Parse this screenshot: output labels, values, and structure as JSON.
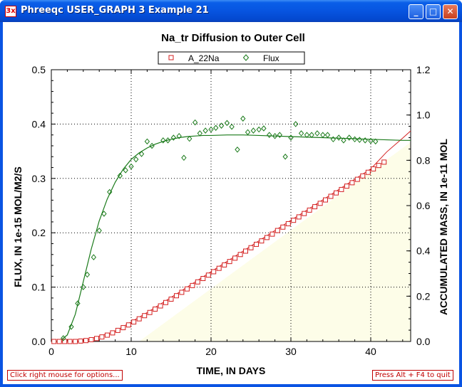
{
  "window": {
    "title": "Phreeqc USER_GRAPH 3 Example 21",
    "app_icon_text": "3x",
    "minimize_symbol": "_",
    "maximize_symbol": "□",
    "close_symbol": "✕"
  },
  "status": {
    "left_hint": "Click right mouse for options...",
    "right_hint": "Press Alt + F4 to quit"
  },
  "colors": {
    "series_a22na": "#d42020",
    "series_flux": "#1a7a1a",
    "fill": "#fdfde8",
    "window_frame": "#0a54e3"
  },
  "chart_data": {
    "type": "scatter",
    "title": "Na_tr Diffusion to Outer Cell",
    "xlabel": "TIME, IN DAYS",
    "ylabel": "FLUX, IN 1e-15 MOL/M2/S",
    "y2label": "ACCUMULATED MASS, IN 1e-11 MOL",
    "xlim": [
      0,
      45
    ],
    "ylim": [
      0,
      0.5
    ],
    "y2lim": [
      0,
      1.2
    ],
    "x_ticks": [
      "0",
      "10",
      "20",
      "30",
      "40"
    ],
    "y_ticks": [
      "0.0",
      "0.1",
      "0.2",
      "0.3",
      "0.4",
      "0.5"
    ],
    "y2_ticks": [
      "0.0",
      "0.2",
      "0.4",
      "0.6",
      "0.8",
      "1.0",
      "1.2"
    ],
    "grid": true,
    "legend_position": "top-center",
    "series": [
      {
        "name": "A_22Na",
        "axis": "y2",
        "marker": "square",
        "x": [
          0.33,
          1.0,
          1.67,
          2.33,
          3.0,
          3.67,
          4.33,
          5.0,
          5.67,
          6.33,
          7.0,
          7.67,
          8.33,
          9.0,
          9.67,
          10.33,
          11.0,
          11.67,
          12.33,
          13.0,
          13.67,
          14.33,
          15.0,
          15.67,
          16.33,
          17.0,
          17.67,
          18.33,
          19.0,
          19.67,
          20.33,
          21.0,
          21.67,
          22.33,
          23.0,
          23.67,
          24.33,
          25.0,
          25.67,
          26.33,
          27.0,
          27.67,
          28.33,
          29.0,
          29.67,
          30.33,
          31.0,
          31.67,
          32.33,
          33.0,
          33.67,
          34.33,
          35.0,
          35.67,
          36.33,
          37.0,
          37.67,
          38.33,
          39.0,
          39.67,
          40.33,
          41.0,
          41.67
        ],
        "y": [
          0.0,
          0.0,
          0.0,
          0.0,
          0.0,
          0.002,
          0.004,
          0.008,
          0.013,
          0.02,
          0.028,
          0.038,
          0.049,
          0.061,
          0.073,
          0.086,
          0.1,
          0.114,
          0.128,
          0.143,
          0.157,
          0.172,
          0.187,
          0.202,
          0.217,
          0.232,
          0.247,
          0.263,
          0.278,
          0.293,
          0.308,
          0.323,
          0.338,
          0.353,
          0.368,
          0.384,
          0.399,
          0.414,
          0.429,
          0.444,
          0.459,
          0.474,
          0.49,
          0.505,
          0.52,
          0.535,
          0.55,
          0.565,
          0.58,
          0.595,
          0.61,
          0.625,
          0.641,
          0.656,
          0.671,
          0.686,
          0.701,
          0.716,
          0.731,
          0.747,
          0.762,
          0.777,
          0.792
        ]
      },
      {
        "name": "Flux",
        "axis": "y1",
        "marker": "diamond",
        "x": [
          1.5,
          2.5,
          3.3,
          4.0,
          4.5,
          5.3,
          6.0,
          6.6,
          7.3,
          8.6,
          9.3,
          10.0,
          10.6,
          11.3,
          12.0,
          12.6,
          14.0,
          14.6,
          15.3,
          16.0,
          16.6,
          17.3,
          18.0,
          18.6,
          19.3,
          20.0,
          20.6,
          21.3,
          22.0,
          22.6,
          23.3,
          24.0,
          24.6,
          25.3,
          26.0,
          26.6,
          27.3,
          28.0,
          28.6,
          29.3,
          30.0,
          30.6,
          31.3,
          32.0,
          32.6,
          33.3,
          34.0,
          34.6,
          35.3,
          36.0,
          36.6,
          37.3,
          38.0,
          38.6,
          39.3,
          40.0,
          40.6
        ],
        "y": [
          0.006,
          0.027,
          0.07,
          0.1,
          0.123,
          0.155,
          0.204,
          0.235,
          0.275,
          0.305,
          0.315,
          0.322,
          0.335,
          0.345,
          0.368,
          0.36,
          0.37,
          0.37,
          0.375,
          0.378,
          0.338,
          0.373,
          0.403,
          0.383,
          0.388,
          0.39,
          0.393,
          0.397,
          0.402,
          0.395,
          0.353,
          0.41,
          0.385,
          0.388,
          0.39,
          0.392,
          0.38,
          0.378,
          0.38,
          0.34,
          0.375,
          0.4,
          0.383,
          0.38,
          0.38,
          0.383,
          0.38,
          0.38,
          0.372,
          0.375,
          0.37,
          0.375,
          0.372,
          0.371,
          0.37,
          0.369,
          0.368
        ]
      },
      {
        "name": "",
        "axis": "y1",
        "marker": "none",
        "line": true,
        "x": [
          0,
          1,
          2,
          3,
          4,
          5,
          6,
          7,
          8,
          9,
          10,
          11,
          12,
          13,
          14,
          15,
          16,
          17,
          18,
          19,
          20,
          22,
          24,
          26,
          28,
          30,
          32,
          34,
          36,
          38,
          40,
          42,
          44,
          45
        ],
        "y": [
          0.0,
          0.0,
          0.012,
          0.05,
          0.11,
          0.17,
          0.222,
          0.262,
          0.293,
          0.317,
          0.335,
          0.347,
          0.356,
          0.363,
          0.368,
          0.372,
          0.375,
          0.377,
          0.378,
          0.379,
          0.379,
          0.38,
          0.38,
          0.379,
          0.378,
          0.377,
          0.376,
          0.375,
          0.374,
          0.373,
          0.372,
          0.371,
          0.37,
          0.37
        ]
      },
      {
        "name": "",
        "axis": "y2",
        "marker": "none",
        "line": true,
        "x": [
          0,
          4,
          8,
          12,
          16,
          20,
          24,
          28,
          32,
          36,
          40,
          42,
          44,
          45
        ],
        "y": [
          0.0,
          0.002,
          0.045,
          0.128,
          0.217,
          0.308,
          0.399,
          0.49,
          0.58,
          0.671,
          0.762,
          0.837,
          0.898,
          0.93
        ]
      },
      {
        "name": "",
        "axis": "y2",
        "marker": "none",
        "area": true,
        "x": [
          11,
          45
        ],
        "y": [
          0.0,
          0.88
        ]
      }
    ]
  }
}
